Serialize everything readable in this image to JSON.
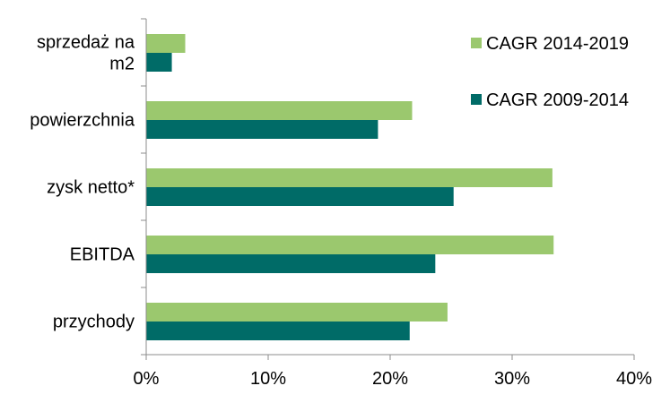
{
  "chart_data": {
    "type": "bar",
    "orientation": "horizontal",
    "categories": [
      [
        "sprzedaż na",
        "m2"
      ],
      [
        "powierzchnia"
      ],
      [
        "zysk netto*"
      ],
      [
        "EBITDA"
      ],
      [
        "przychody"
      ]
    ],
    "series": [
      {
        "name": "CAGR 2014-2019",
        "color": "#9BC86E",
        "values": [
          3.2,
          21.8,
          33.3,
          33.4,
          24.7
        ]
      },
      {
        "name": "CAGR 2009-2014",
        "color": "#006B67",
        "values": [
          2.1,
          19.0,
          25.2,
          23.7,
          21.6
        ]
      }
    ],
    "x_ticks": [
      "0%",
      "10%",
      "20%",
      "30%",
      "40%"
    ],
    "xlim": [
      0,
      40
    ],
    "grid": false,
    "legend_position": "top-right"
  }
}
